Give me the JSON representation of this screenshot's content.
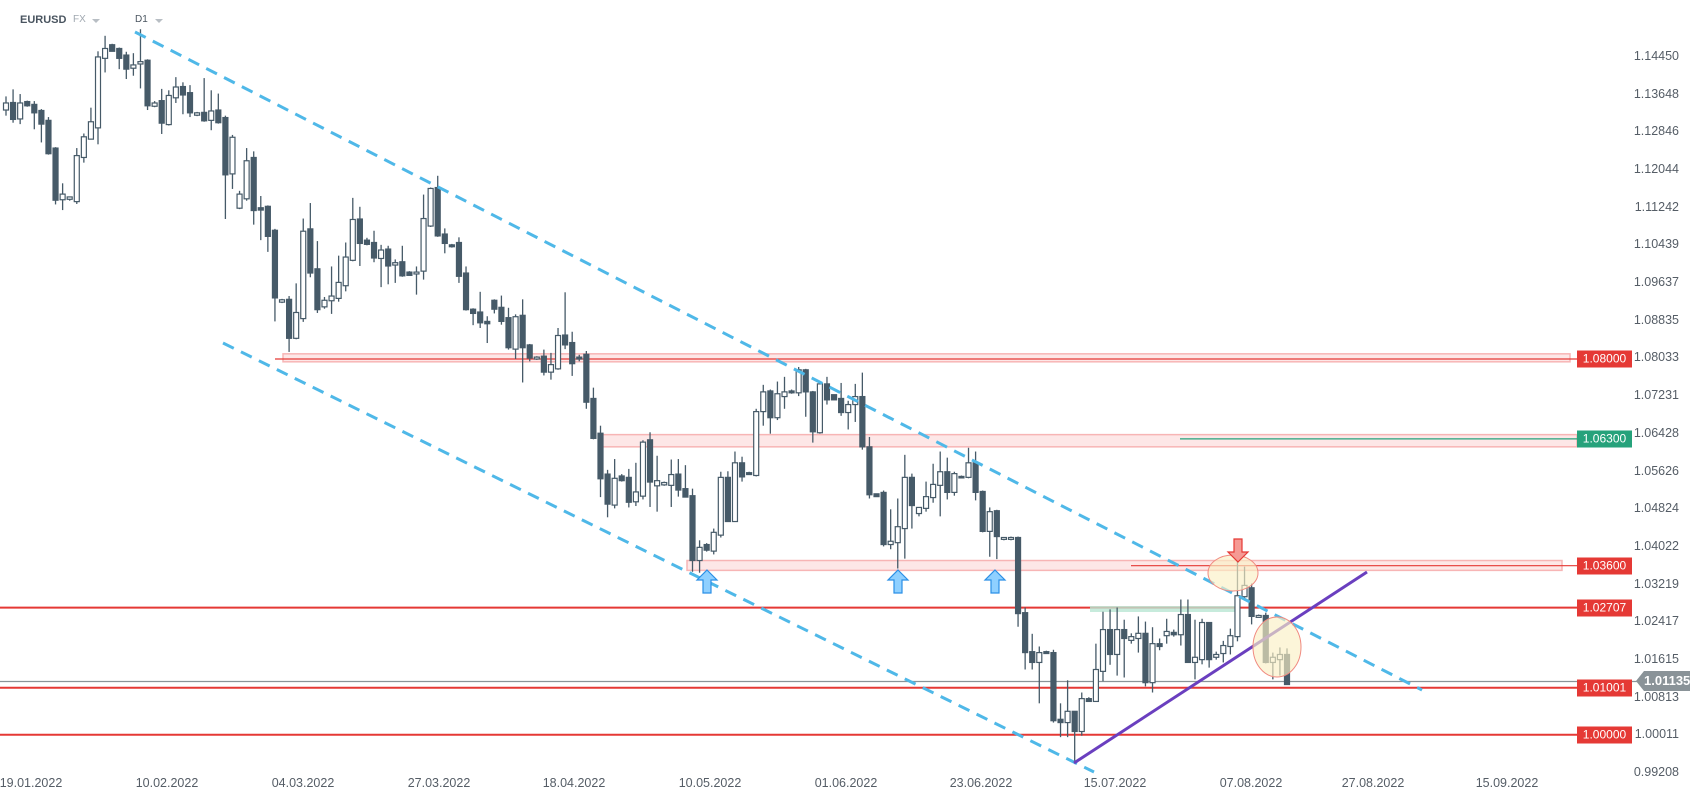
{
  "header": {
    "symbol": "EURUSD",
    "market": "FX",
    "timeframe": "D1"
  },
  "colors": {
    "red": "#e53935",
    "green": "#26a27b",
    "channel": "#4fb8e8",
    "trend": "#6a3fbf",
    "candle": "#465a68",
    "band": "#fde7e7",
    "current": "#8a9398"
  },
  "chart_data": {
    "type": "candlestick",
    "title": "EURUSD D1",
    "ylim": [
      0.99208,
      1.1445
    ],
    "y_ticks": [
      "1.14450",
      "1.13648",
      "1.12846",
      "1.12044",
      "1.11242",
      "1.10439",
      "1.09637",
      "1.08835",
      "1.08033",
      "1.07231",
      "1.06428",
      "1.05626",
      "1.04824",
      "1.04022",
      "1.03219",
      "1.02417",
      "1.01615",
      "1.00813",
      "1.00011",
      "0.99208"
    ],
    "x_ticks": [
      "19.01.2022",
      "10.02.2022",
      "04.03.2022",
      "27.03.2022",
      "18.04.2022",
      "10.05.2022",
      "01.06.2022",
      "23.06.2022",
      "15.07.2022",
      "07.08.2022",
      "27.08.2022",
      "15.09.2022"
    ],
    "candles_ohlc": [
      [
        1.133,
        1.1359,
        1.1318,
        1.1345
      ],
      [
        1.1346,
        1.1374,
        1.1303,
        1.131
      ],
      [
        1.1311,
        1.1364,
        1.13,
        1.1345
      ],
      [
        1.1348,
        1.135,
        1.1337,
        1.1339
      ],
      [
        1.1342,
        1.1349,
        1.1289,
        1.1324
      ],
      [
        1.1329,
        1.1332,
        1.1261,
        1.13
      ],
      [
        1.1308,
        1.1315,
        1.1235,
        1.1237
      ],
      [
        1.1249,
        1.1251,
        1.1129,
        1.1138
      ],
      [
        1.1139,
        1.1174,
        1.1117,
        1.1151
      ],
      [
        1.114,
        1.1145,
        1.1137,
        1.1145
      ],
      [
        1.1135,
        1.1249,
        1.113,
        1.1233
      ],
      [
        1.1229,
        1.128,
        1.1218,
        1.1273
      ],
      [
        1.1268,
        1.1335,
        1.1268,
        1.1305
      ],
      [
        1.1292,
        1.1455,
        1.1257,
        1.1443
      ],
      [
        1.144,
        1.1488,
        1.141,
        1.1461
      ],
      [
        1.1469,
        1.1471,
        1.1455,
        1.1455
      ],
      [
        1.1461,
        1.1463,
        1.1417,
        1.144
      ],
      [
        1.1447,
        1.1454,
        1.1396,
        1.1417
      ],
      [
        1.1419,
        1.1451,
        1.1403,
        1.1426
      ],
      [
        1.1428,
        1.1502,
        1.1376,
        1.1433
      ],
      [
        1.1436,
        1.1438,
        1.133,
        1.1339
      ],
      [
        1.1338,
        1.1349,
        1.1336,
        1.1345
      ],
      [
        1.135,
        1.1375,
        1.1279,
        1.1302
      ],
      [
        1.1299,
        1.1372,
        1.1297,
        1.1361
      ],
      [
        1.1356,
        1.14,
        1.1345,
        1.1379
      ],
      [
        1.138,
        1.1389,
        1.1321,
        1.1362
      ],
      [
        1.1367,
        1.1383,
        1.1315,
        1.1324
      ],
      [
        1.1319,
        1.1326,
        1.1317,
        1.1324
      ],
      [
        1.1325,
        1.1398,
        1.1305,
        1.1307
      ],
      [
        1.1308,
        1.1372,
        1.1287,
        1.1328
      ],
      [
        1.133,
        1.1365,
        1.1301,
        1.1303
      ],
      [
        1.1314,
        1.1318,
        1.1098,
        1.1192
      ],
      [
        1.1194,
        1.1277,
        1.1162,
        1.1272
      ],
      [
        1.1121,
        1.1158,
        1.1119,
        1.1151
      ],
      [
        1.1141,
        1.1249,
        1.1137,
        1.1222
      ],
      [
        1.1229,
        1.1242,
        1.1086,
        1.1116
      ],
      [
        1.1122,
        1.1147,
        1.1053,
        1.1117
      ],
      [
        1.1125,
        1.1127,
        1.1028,
        1.1061
      ],
      [
        1.1074,
        1.1077,
        1.088,
        1.093
      ],
      [
        1.0921,
        1.0928,
        1.0919,
        1.0926
      ],
      [
        1.0927,
        1.0934,
        1.0815,
        1.0844
      ],
      [
        1.0844,
        1.0961,
        1.0842,
        1.0899
      ],
      [
        1.0886,
        1.1099,
        1.0879,
        1.1072
      ],
      [
        1.1077,
        1.1132,
        1.0974,
        1.0983
      ],
      [
        1.0992,
        1.1051,
        1.0898,
        1.0905
      ],
      [
        1.0911,
        1.0932,
        1.0907,
        1.0925
      ],
      [
        1.0924,
        1.0997,
        1.0896,
        1.0934
      ],
      [
        1.0929,
        1.102,
        1.0922,
        1.0963
      ],
      [
        1.0956,
        1.1048,
        1.0944,
        1.1017
      ],
      [
        1.101,
        1.1143,
        1.1008,
        1.1097
      ],
      [
        1.1098,
        1.1124,
        1.0998,
        1.1046
      ],
      [
        1.1053,
        1.1058,
        1.1042,
        1.1044
      ],
      [
        1.1048,
        1.1073,
        1.1006,
        1.1015
      ],
      [
        1.1014,
        1.1043,
        1.0953,
        1.1032
      ],
      [
        1.1034,
        1.1041,
        1.0959,
        1.0998
      ],
      [
        1.1,
        1.1012,
        1.0962,
        1.1005
      ],
      [
        1.1007,
        1.1041,
        1.0975,
        1.0977
      ],
      [
        1.0985,
        1.0987,
        1.0978,
        1.0978
      ],
      [
        1.0981,
        1.0997,
        1.0937,
        1.0985
      ],
      [
        1.0987,
        1.115,
        1.0969,
        1.1099
      ],
      [
        1.1083,
        1.1165,
        1.1081,
        1.1163
      ],
      [
        1.1165,
        1.119,
        1.106,
        1.1062
      ],
      [
        1.1066,
        1.1078,
        1.1025,
        1.1046
      ],
      [
        1.1043,
        1.1045,
        1.1037,
        1.1039
      ],
      [
        1.1048,
        1.1059,
        1.0962,
        1.0976
      ],
      [
        1.0983,
        1.0997,
        1.0903,
        1.0905
      ],
      [
        1.0906,
        1.0908,
        1.0872,
        1.0897
      ],
      [
        1.09,
        1.0943,
        1.0866,
        1.0877
      ],
      [
        1.088,
        1.0891,
        1.0834,
        1.0875
      ],
      [
        1.0925,
        1.0927,
        1.0897,
        1.0906
      ],
      [
        1.091,
        1.0935,
        1.0873,
        1.088
      ],
      [
        1.0888,
        1.0909,
        1.082,
        1.0824
      ],
      [
        1.0821,
        1.0895,
        1.08,
        1.089
      ],
      [
        1.0893,
        1.0927,
        1.075,
        1.0824
      ],
      [
        1.083,
        1.0832,
        1.0795,
        1.0802
      ],
      [
        1.08,
        1.0806,
        1.0798,
        1.0804
      ],
      [
        1.0806,
        1.082,
        1.0765,
        1.0772
      ],
      [
        1.0772,
        1.0813,
        1.0756,
        1.0788
      ],
      [
        1.0779,
        1.0866,
        1.0777,
        1.085
      ],
      [
        1.0851,
        1.0942,
        1.0821,
        1.083
      ],
      [
        1.0835,
        1.0858,
        1.0764,
        1.079
      ],
      [
        1.0804,
        1.0809,
        1.0795,
        1.08
      ],
      [
        1.081,
        1.0817,
        1.0694,
        1.0708
      ],
      [
        1.0716,
        1.0739,
        1.0629,
        1.0631
      ],
      [
        1.0642,
        1.0658,
        1.0506,
        1.0545
      ],
      [
        1.0555,
        1.0564,
        1.0463,
        1.0491
      ],
      [
        1.0489,
        1.0587,
        1.0482,
        1.0546
      ],
      [
        1.0551,
        1.0555,
        1.0539,
        1.0541
      ],
      [
        1.0548,
        1.0566,
        1.0484,
        1.0495
      ],
      [
        1.0496,
        1.0579,
        1.0487,
        1.0517
      ],
      [
        1.0508,
        1.0627,
        1.0501,
        1.0623
      ],
      [
        1.0628,
        1.0644,
        1.0485,
        1.0538
      ],
      [
        1.053,
        1.0594,
        1.0475,
        1.0541
      ],
      [
        1.0532,
        1.0539,
        1.053,
        1.0537
      ],
      [
        1.0531,
        1.0586,
        1.0485,
        1.0554
      ],
      [
        1.0555,
        1.0587,
        1.0507,
        1.0521
      ],
      [
        1.0524,
        1.0574,
        1.0506,
        1.0506
      ],
      [
        1.0509,
        1.0524,
        1.0347,
        1.0371
      ],
      [
        1.0371,
        1.0414,
        1.0345,
        1.0399
      ],
      [
        1.0405,
        1.0408,
        1.039,
        1.0393
      ],
      [
        1.0391,
        1.0439,
        1.0384,
        1.0431
      ],
      [
        1.0425,
        1.056,
        1.042,
        1.0548
      ],
      [
        1.0548,
        1.0561,
        1.0454,
        1.0454
      ],
      [
        1.0454,
        1.0603,
        1.0454,
        1.0579
      ],
      [
        1.0579,
        1.0592,
        1.0539,
        1.0549
      ],
      [
        1.0558,
        1.056,
        1.0554,
        1.0554
      ],
      [
        1.0552,
        1.0694,
        1.055,
        1.0688
      ],
      [
        1.0688,
        1.0745,
        1.0658,
        1.073
      ],
      [
        1.0732,
        1.0735,
        1.0641,
        1.0675
      ],
      [
        1.0675,
        1.0752,
        1.067,
        1.0726
      ],
      [
        1.072,
        1.0762,
        1.0694,
        1.073
      ],
      [
        1.0732,
        1.0735,
        1.0726,
        1.0728
      ],
      [
        1.0728,
        1.0783,
        1.0721,
        1.0777
      ],
      [
        1.0777,
        1.0779,
        1.0677,
        1.073
      ],
      [
        1.073,
        1.0732,
        1.0622,
        1.0645
      ],
      [
        1.0643,
        1.0749,
        1.0641,
        1.0747
      ],
      [
        1.0747,
        1.0762,
        1.0703,
        1.0713
      ],
      [
        1.0724,
        1.0724,
        1.0713,
        1.0713
      ],
      [
        1.0716,
        1.0749,
        1.0679,
        1.0686
      ],
      [
        1.0686,
        1.0711,
        1.065,
        1.0703
      ],
      [
        1.0703,
        1.0747,
        1.0666,
        1.072
      ],
      [
        1.072,
        1.0771,
        1.0607,
        1.0613
      ],
      [
        1.0613,
        1.0634,
        1.0503,
        1.0511
      ],
      [
        1.0513,
        1.0513,
        1.0507,
        1.0507
      ],
      [
        1.0516,
        1.052,
        1.0401,
        1.0405
      ],
      [
        1.0405,
        1.048,
        1.0395,
        1.0412
      ],
      [
        1.0409,
        1.0503,
        1.0354,
        1.0443
      ],
      [
        1.0439,
        1.0596,
        1.0375,
        1.0548
      ],
      [
        1.0548,
        1.0556,
        1.0439,
        1.0488
      ],
      [
        1.0471,
        1.0484,
        1.0465,
        1.0484
      ],
      [
        1.0482,
        1.0539,
        1.0475,
        1.0507
      ],
      [
        1.0505,
        1.0577,
        1.0494,
        1.0533
      ],
      [
        1.0531,
        1.0603,
        1.0465,
        1.056
      ],
      [
        1.056,
        1.059,
        1.0501,
        1.0516
      ],
      [
        1.0516,
        1.056,
        1.0509,
        1.0556
      ],
      [
        1.055,
        1.0552,
        1.0546,
        1.0548
      ],
      [
        1.0548,
        1.0611,
        1.0546,
        1.0579
      ],
      [
        1.0579,
        1.0603,
        1.0499,
        1.0516
      ],
      [
        1.0518,
        1.052,
        1.0431,
        1.0433
      ],
      [
        1.0433,
        1.0484,
        1.0379,
        1.0475
      ],
      [
        1.0477,
        1.0479,
        1.0374,
        1.0422
      ],
      [
        1.0416,
        1.042,
        1.0414,
        1.042
      ],
      [
        1.0416,
        1.0422,
        1.0414,
        1.042
      ],
      [
        1.042,
        1.0422,
        1.023,
        1.0258
      ],
      [
        1.026,
        1.0271,
        1.0139,
        1.0175
      ],
      [
        1.0177,
        1.0215,
        1.0139,
        1.0154
      ],
      [
        1.0154,
        1.0188,
        1.0067,
        1.0175
      ],
      [
        1.0177,
        1.0179,
        1.0173,
        1.0173
      ],
      [
        1.0175,
        1.0181,
        1.0026,
        1.003
      ],
      [
        1.0033,
        1.0067,
        0.9995,
        1.0026
      ],
      [
        1.0026,
        1.0116,
        0.9995,
        1.005
      ],
      [
        1.005,
        1.005,
        0.9941,
        1.0007
      ],
      [
        1.0007,
        1.009,
        0.9998,
        1.0077
      ],
      [
        1.0077,
        1.008,
        1.0071,
        1.0071
      ],
      [
        1.0071,
        1.0194,
        1.0071,
        1.0139
      ],
      [
        1.0135,
        1.0262,
        1.0114,
        1.0224
      ],
      [
        1.0224,
        1.0267,
        1.0149,
        1.0171
      ],
      [
        1.0171,
        1.0271,
        1.0126,
        1.0224
      ],
      [
        1.0224,
        1.0245,
        1.0122,
        1.0205
      ],
      [
        1.0201,
        1.0216,
        1.0194,
        1.0209
      ],
      [
        1.0205,
        1.0252,
        1.0175,
        1.0216
      ],
      [
        1.0216,
        1.0241,
        1.0103,
        1.0111
      ],
      [
        1.0111,
        1.0229,
        1.009,
        1.0194
      ],
      [
        1.0194,
        1.0205,
        1.018,
        1.0188
      ],
      [
        1.0211,
        1.0247,
        1.0194,
        1.022
      ],
      [
        1.0218,
        1.0224,
        1.0209,
        1.0213
      ],
      [
        1.0213,
        1.0288,
        1.019,
        1.0256
      ],
      [
        1.0256,
        1.0288,
        1.0154,
        1.0154
      ],
      [
        1.0154,
        1.0245,
        1.0118,
        1.0165
      ],
      [
        1.016,
        1.0247,
        1.015,
        1.0239
      ],
      [
        1.0239,
        1.0239,
        1.0143,
        1.016
      ],
      [
        1.0165,
        1.0177,
        1.016,
        1.0171
      ],
      [
        1.0173,
        1.02,
        1.0154,
        1.019
      ],
      [
        1.0188,
        1.0226,
        1.0171,
        1.0211
      ],
      [
        1.0209,
        1.0373,
        1.0199,
        1.0296
      ],
      [
        1.0294,
        1.0358,
        1.029,
        1.0318
      ],
      [
        1.0313,
        1.0322,
        1.0235,
        1.0252
      ],
      [
        1.025,
        1.0256,
        1.025,
        1.0254
      ],
      [
        1.0254,
        1.026,
        1.0152,
        1.0154
      ],
      [
        1.0154,
        1.0175,
        1.0118,
        1.0165
      ],
      [
        1.016,
        1.0186,
        1.0126,
        1.0171
      ],
      [
        1.0171,
        1.0184,
        1.0107,
        1.0107
      ]
    ],
    "levels": [
      {
        "price": 1.08,
        "label": "1.08000",
        "color": "red",
        "band": [
          1.0794,
          1.0811
        ]
      },
      {
        "price": 1.063,
        "label": "1.06300",
        "color": "green",
        "band": [
          1.0613,
          1.0639
        ]
      },
      {
        "price": 1.036,
        "label": "1.03600",
        "color": "red",
        "band": [
          1.035,
          1.0371
        ]
      },
      {
        "price": 1.02707,
        "label": "1.02707",
        "color": "red"
      },
      {
        "price": 1.01001,
        "label": "1.01001",
        "color": "red"
      },
      {
        "price": 1.0,
        "label": "1.00000",
        "color": "red"
      }
    ],
    "current_price": {
      "price": 1.01135,
      "label": "1.01135"
    }
  }
}
